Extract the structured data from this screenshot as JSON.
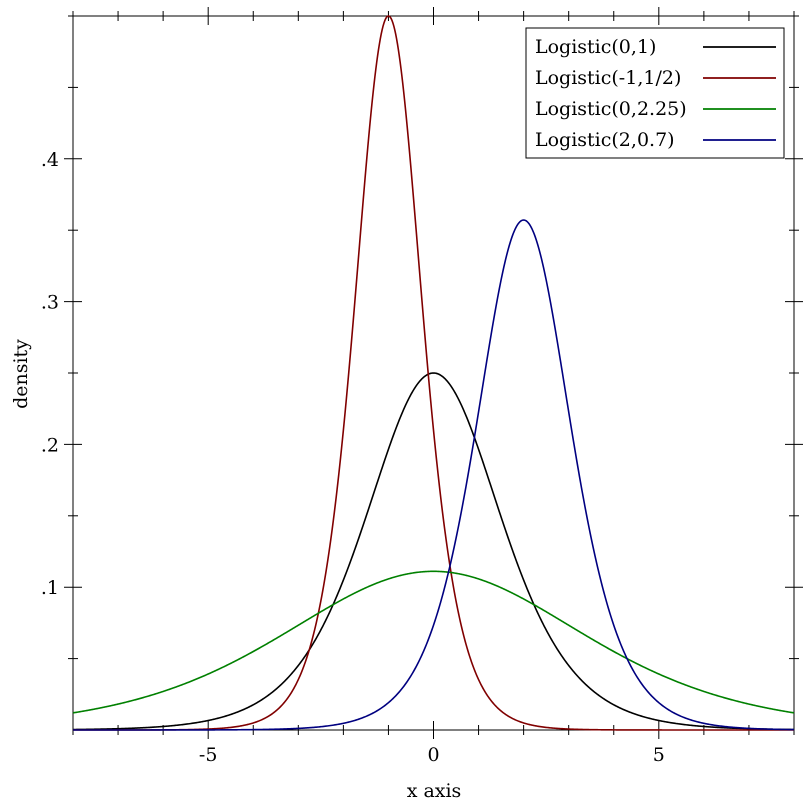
{
  "chart_data": {
    "type": "line",
    "title": "",
    "xlabel": "x axis",
    "ylabel": "density",
    "xlim": [
      -8,
      8
    ],
    "ylim": [
      0,
      0.5
    ],
    "x_major_ticks": [
      -5,
      0,
      5
    ],
    "x_tick_labels": [
      "-5",
      "0",
      "5"
    ],
    "y_major_ticks": [
      0.1,
      0.2,
      0.3,
      0.4
    ],
    "y_tick_labels": [
      ".1",
      ".2",
      ".3",
      ".4"
    ],
    "grid": false,
    "legend_position": "top-right",
    "series": [
      {
        "name": "Logistic(0,1)",
        "distribution": "logistic",
        "mean": 0,
        "scale": 1,
        "color": "#000000",
        "peak": {
          "x": 0,
          "y": 0.25
        }
      },
      {
        "name": "Logistic(-1,1/2)",
        "distribution": "logistic",
        "mean": -1,
        "scale": 0.5,
        "color": "#800000",
        "peak": {
          "x": -1,
          "y": 0.5
        }
      },
      {
        "name": "Logistic(0,2.25)",
        "distribution": "logistic",
        "mean": 0,
        "scale": 2.25,
        "color": "#008000",
        "peak": {
          "x": 0,
          "y": 0.111
        }
      },
      {
        "name": "Logistic(2,0.7)",
        "distribution": "logistic",
        "mean": 2,
        "scale": 0.7,
        "color": "#000080",
        "peak": {
          "x": 2,
          "y": 0.357
        }
      }
    ]
  }
}
